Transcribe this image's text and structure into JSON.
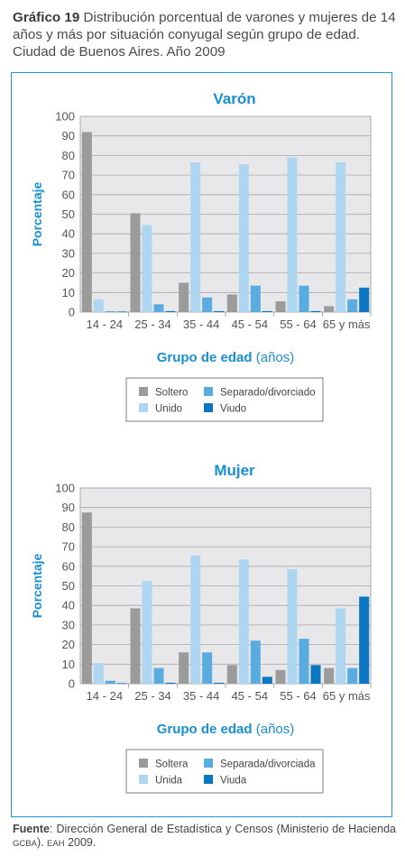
{
  "header": {
    "number": "Gráfico 19",
    "text": "Distribución porcentual de varones y mujeres de 14 años y más por situación conyugal según grupo de edad. Ciudad de Buenos Aires. Año 2009"
  },
  "colors": {
    "soltero": "#9b9b9b",
    "unido": "#aed6f1",
    "separado": "#5aace0",
    "viudo": "#0b76c2",
    "plot_bg": "#e8e8ea",
    "accent": "#1a8fd0"
  },
  "chart_data": [
    {
      "type": "bar",
      "title": "Varón",
      "ylabel": "Porcentaje",
      "xlabel_bold": "Grupo de edad",
      "xlabel_rest": "(años)",
      "ylim": [
        0,
        100
      ],
      "yticks": [
        0,
        10,
        20,
        30,
        40,
        50,
        60,
        70,
        80,
        90,
        100
      ],
      "categories": [
        "14 - 24",
        "25 - 34",
        "35 - 44",
        "45 - 54",
        "55 - 64",
        "65 y más"
      ],
      "series": [
        {
          "name": "Soltero",
          "values": [
            92,
            50.5,
            15,
            9,
            5.5,
            3
          ]
        },
        {
          "name": "Unido",
          "values": [
            6.5,
            44.5,
            76.5,
            75.5,
            79,
            76.5
          ]
        },
        {
          "name": "Separado/divorciado",
          "values": [
            0.5,
            4,
            7.5,
            13.5,
            13.5,
            6.5
          ]
        },
        {
          "name": "Viudo",
          "values": [
            0.3,
            0.5,
            0.5,
            0.5,
            0.5,
            12.5
          ]
        }
      ],
      "legend_position": "bottom"
    },
    {
      "type": "bar",
      "title": "Mujer",
      "ylabel": "Porcentaje",
      "xlabel_bold": "Grupo de edad",
      "xlabel_rest": "(años)",
      "ylim": [
        0,
        100
      ],
      "yticks": [
        0,
        10,
        20,
        30,
        40,
        50,
        60,
        70,
        80,
        90,
        100
      ],
      "categories": [
        "14 - 24",
        "25 - 34",
        "35 - 44",
        "45 - 54",
        "55 - 64",
        "65 y más"
      ],
      "series": [
        {
          "name": "Soltera",
          "values": [
            87.5,
            38.5,
            16,
            9.5,
            7,
            8
          ]
        },
        {
          "name": "Unida",
          "values": [
            10.5,
            52.5,
            65.5,
            63.5,
            58.5,
            38.5
          ]
        },
        {
          "name": "Separada/divorciada",
          "values": [
            1.5,
            8,
            16,
            22,
            23,
            8
          ]
        },
        {
          "name": "Viuda",
          "values": [
            0.3,
            0.5,
            0.5,
            3.5,
            9.5,
            44.5
          ]
        }
      ],
      "legend_position": "bottom"
    }
  ],
  "footer": {
    "label": "Fuente",
    "text_1": ": Dirección General de Estadística y Censos (Ministerio de Hacienda ",
    "sc_1": "GCBA",
    "text_2": "). ",
    "sc_2": "EAH",
    "text_3": " 2009."
  }
}
